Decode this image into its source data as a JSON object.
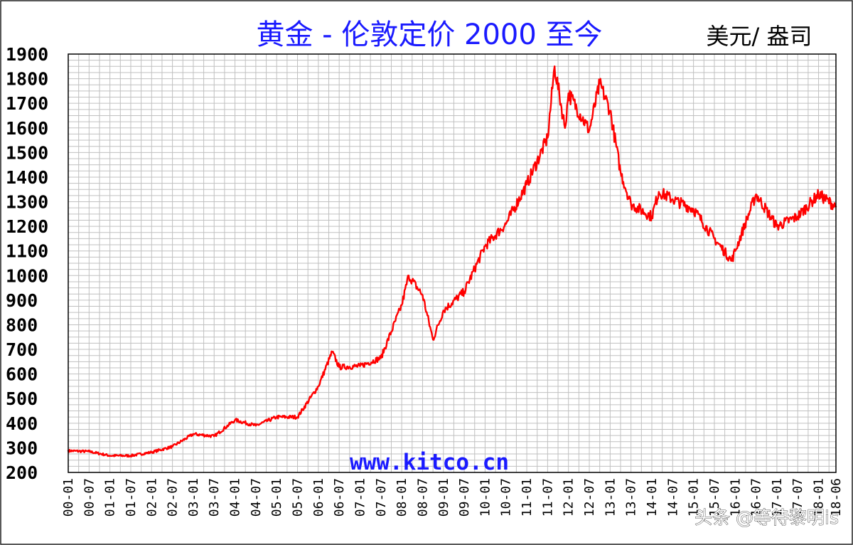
{
  "chart_data": {
    "type": "line",
    "title": "黄金 - 伦敦定价 2000 至今",
    "unit": "美元/ 盎司",
    "watermark": "www.kitco.cn",
    "credit": "头条 @等待黎明is",
    "ylim": [
      200,
      1900
    ],
    "grid": true,
    "colors": {
      "line": "#ff0000",
      "grid": "#c0c0c0",
      "frame": "#000000",
      "title": "#1a1aff"
    },
    "y_ticks": [
      "1900",
      "1800",
      "1700",
      "1600",
      "1500",
      "1400",
      "1300",
      "1200",
      "1100",
      "1000",
      "900",
      "800",
      "700",
      "600",
      "500",
      "400",
      "300",
      "200"
    ],
    "x_ticks": [
      "00-01",
      "00-07",
      "01-01",
      "01-07",
      "02-01",
      "02-07",
      "03-01",
      "03-07",
      "04-01",
      "04-07",
      "05-01",
      "05-07",
      "06-01",
      "06-07",
      "07-01",
      "07-07",
      "08-01",
      "08-07",
      "09-01",
      "09-07",
      "10-01",
      "10-07",
      "11-01",
      "11-07",
      "12-01",
      "12-07",
      "13-01",
      "13-07",
      "14-01",
      "14-07",
      "15-01",
      "15-07",
      "16-01",
      "16-07",
      "17-01",
      "17-07",
      "18-01",
      "18-06"
    ],
    "series": [
      {
        "x": [
          "2000-01",
          "2000-07",
          "2001-01",
          "2001-07",
          "2002-01",
          "2002-07",
          "2003-01",
          "2003-07",
          "2004-01",
          "2004-07",
          "2005-01",
          "2005-07",
          "2006-01",
          "2006-05",
          "2006-07",
          "2007-01",
          "2007-07",
          "2008-01",
          "2008-03",
          "2008-07",
          "2008-10",
          "2009-01",
          "2009-07",
          "2010-01",
          "2010-07",
          "2011-01",
          "2011-07",
          "2011-09",
          "2011-12",
          "2012-01",
          "2012-07",
          "2012-10",
          "2013-01",
          "2013-04",
          "2013-07",
          "2014-01",
          "2014-03",
          "2014-07",
          "2015-01",
          "2015-07",
          "2015-12",
          "2016-01",
          "2016-07",
          "2017-01",
          "2017-07",
          "2018-01",
          "2018-06"
        ],
        "y": [
          288,
          285,
          268,
          268,
          282,
          305,
          356,
          347,
          413,
          390,
          425,
          425,
          550,
          690,
          628,
          632,
          665,
          880,
          1000,
          920,
          740,
          858,
          935,
          1120,
          1210,
          1370,
          1560,
          1850,
          1600,
          1740,
          1590,
          1780,
          1670,
          1420,
          1290,
          1240,
          1340,
          1310,
          1270,
          1150,
          1060,
          1100,
          1330,
          1200,
          1240,
          1330,
          1280
        ]
      }
    ]
  }
}
